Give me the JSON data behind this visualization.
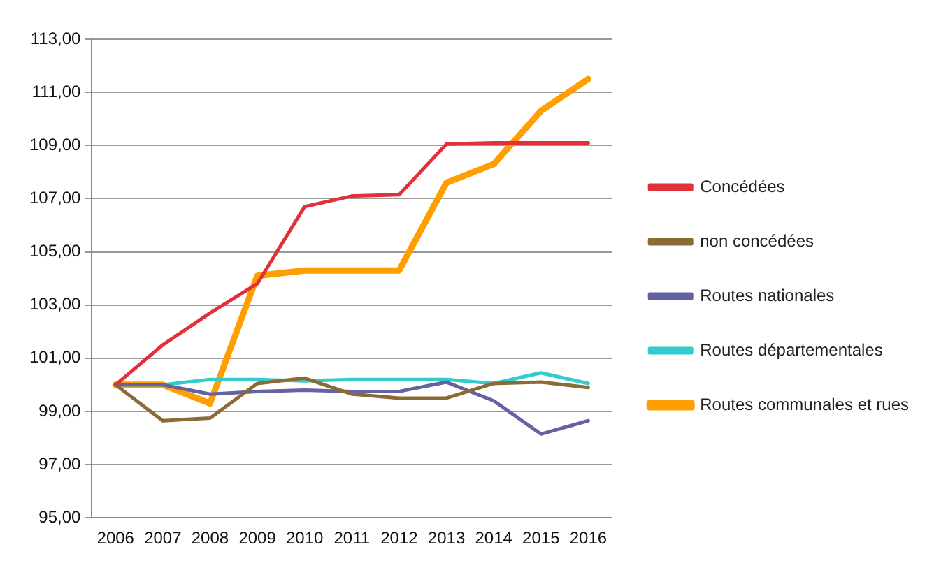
{
  "chart_data": {
    "type": "line",
    "categories": [
      "2006",
      "2007",
      "2008",
      "2009",
      "2010",
      "2011",
      "2012",
      "2013",
      "2014",
      "2015",
      "2016"
    ],
    "series": [
      {
        "name": "Concédées",
        "color": "#e0303a",
        "values": [
          100,
          101.5,
          102.7,
          103.8,
          106.7,
          107.1,
          107.15,
          109.05,
          109.1,
          109.1,
          109.1
        ]
      },
      {
        "name": "non concédées",
        "color": "#8c6a35",
        "values": [
          100,
          98.65,
          98.75,
          100.05,
          100.25,
          99.65,
          99.5,
          99.5,
          100.05,
          100.1,
          99.9
        ]
      },
      {
        "name": "Routes nationales",
        "color": "#6462a0",
        "values": [
          100,
          100,
          99.65,
          99.75,
          99.8,
          99.75,
          99.75,
          100.1,
          99.4,
          98.15,
          98.65
        ]
      },
      {
        "name": "Routes départementales",
        "color": "#33cccc",
        "values": [
          100,
          100,
          100.2,
          100.2,
          100.15,
          100.2,
          100.2,
          100.2,
          100.05,
          100.45,
          100.05
        ]
      },
      {
        "name": "Routes communales et rues",
        "color": "#ff9e00",
        "values": [
          100,
          100,
          99.3,
          104.1,
          104.3,
          104.3,
          104.3,
          107.6,
          108.3,
          110.3,
          111.5
        ]
      }
    ],
    "ylim": [
      95,
      113
    ],
    "yticks": [
      {
        "value": 95,
        "label": "95,00"
      },
      {
        "value": 97,
        "label": "97,00"
      },
      {
        "value": 99,
        "label": "99,00"
      },
      {
        "value": 101,
        "label": "101,00"
      },
      {
        "value": 103,
        "label": "103,00"
      },
      {
        "value": 105,
        "label": "105,00"
      },
      {
        "value": 107,
        "label": "107,00"
      },
      {
        "value": 109,
        "label": "109,00"
      },
      {
        "value": 111,
        "label": "111,00"
      },
      {
        "value": 113,
        "label": "113,00"
      }
    ],
    "grid": "y",
    "legend": "right",
    "marker": "none",
    "line_style": "solid"
  }
}
